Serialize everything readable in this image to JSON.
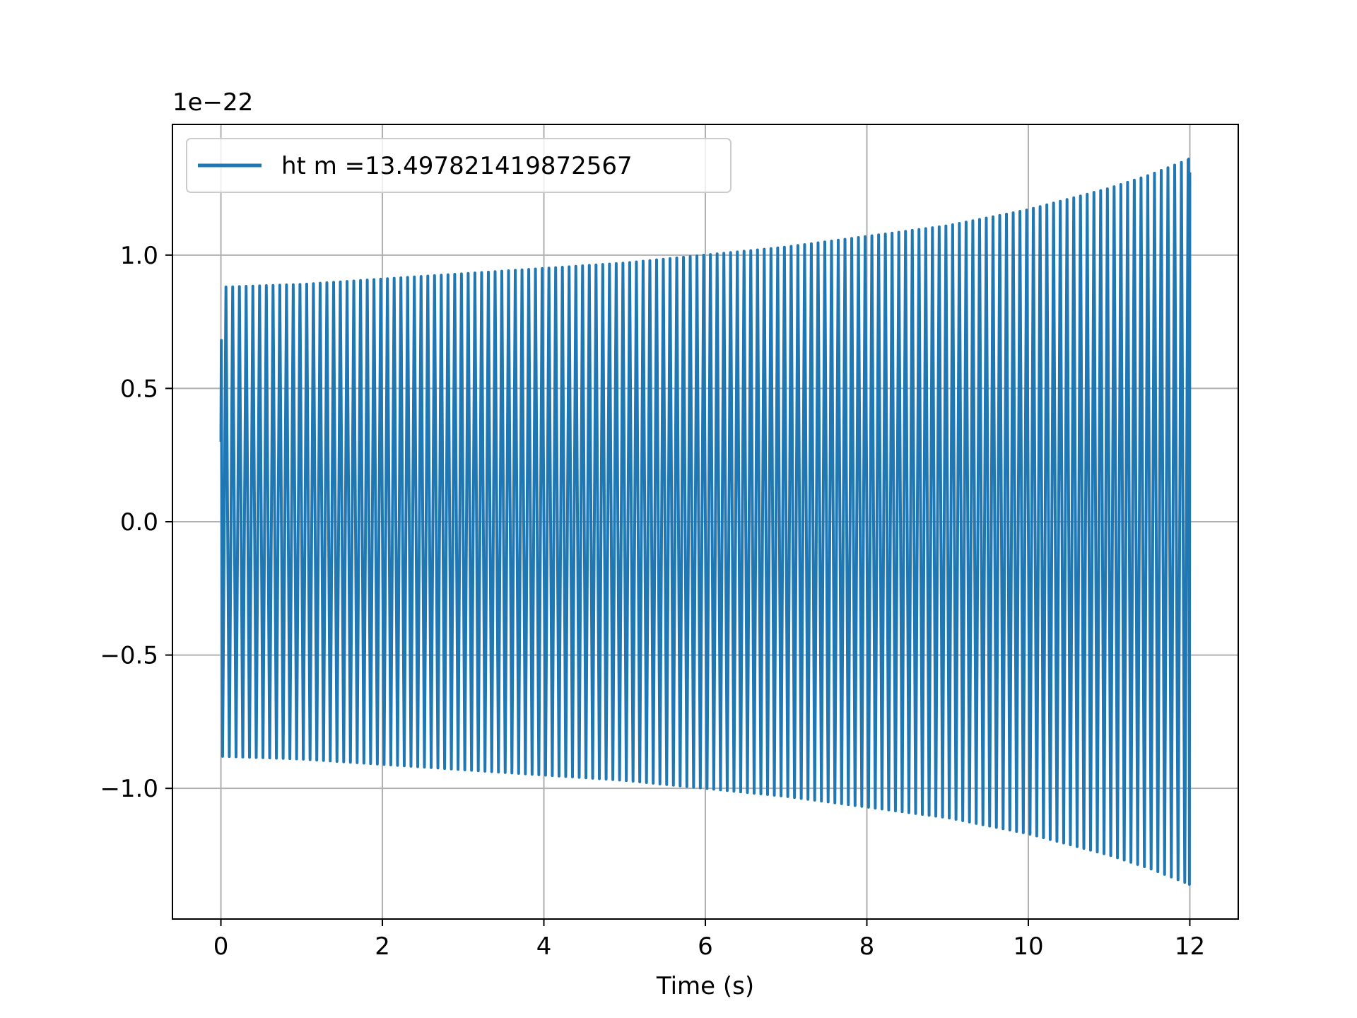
{
  "chart_data": {
    "type": "line",
    "title": "",
    "xlabel": "Time (s)",
    "ylabel": "",
    "y_offset_label": "1e−22",
    "xlim": [
      -0.6,
      12.6
    ],
    "ylim": [
      -1.49,
      1.49
    ],
    "x_ticks": [
      0,
      2,
      4,
      6,
      8,
      10,
      12
    ],
    "x_tick_labels": [
      "0",
      "2",
      "4",
      "6",
      "8",
      "10",
      "12"
    ],
    "y_ticks": [
      -1.0,
      -0.5,
      0.0,
      0.5,
      1.0
    ],
    "y_tick_labels": [
      "−1.0",
      "−0.5",
      "0.0",
      "0.5",
      "1.0"
    ],
    "grid": true,
    "legend_position": "upper-left",
    "series": [
      {
        "name": "ht m =13.497821419872567",
        "color": "#1f77b4",
        "t_start": 0.0,
        "t_end": 12.0,
        "start_value": 0.3,
        "first_peak": 0.68,
        "envelope_t": [
          0.05,
          1,
          2,
          3,
          4,
          5,
          6,
          7,
          8,
          9,
          10,
          11,
          11.5,
          12
        ],
        "envelope": [
          0.88,
          0.89,
          0.91,
          0.93,
          0.95,
          0.97,
          1.0,
          1.03,
          1.07,
          1.11,
          1.17,
          1.25,
          1.3,
          1.36
        ],
        "end_value": 1.31,
        "cycles_per_second": 12
      }
    ]
  }
}
